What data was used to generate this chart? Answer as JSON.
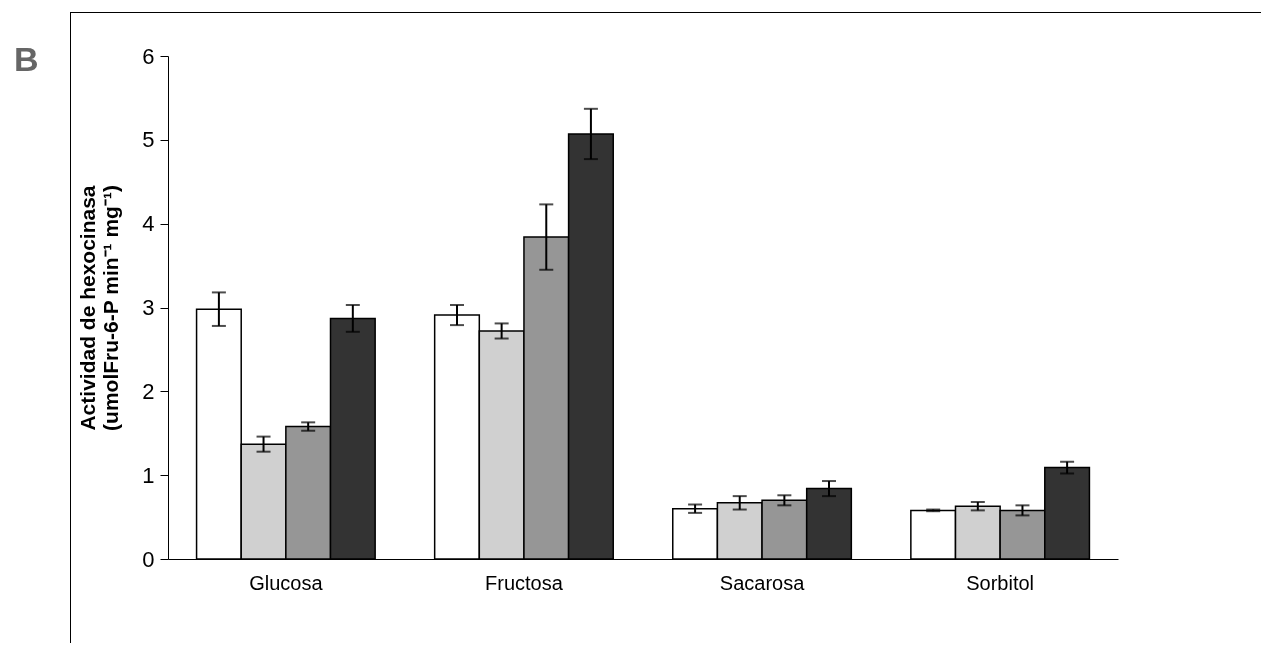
{
  "chart_data": {
    "type": "bar",
    "ylabel": "Actividad de hexocinasa\n(umolFru-6-P min⁻¹ mg⁻¹)",
    "annotations": [
      "B"
    ],
    "categories": [
      "Glucosa",
      "Fructosa",
      "Sacarosa",
      "Sorbitol"
    ],
    "series": [
      {
        "color": "#ffffff",
        "values": [
          2.98,
          2.91,
          0.6,
          0.58
        ],
        "errors": [
          0.2,
          0.12,
          0.05,
          0.01
        ]
      },
      {
        "color": "#d0d0d0",
        "values": [
          1.37,
          2.72,
          0.67,
          0.63
        ],
        "errors": [
          0.09,
          0.09,
          0.08,
          0.05
        ]
      },
      {
        "color": "#969696",
        "values": [
          1.58,
          3.84,
          0.7,
          0.58
        ],
        "errors": [
          0.05,
          0.39,
          0.06,
          0.06
        ]
      },
      {
        "color": "#333333",
        "values": [
          2.87,
          5.07,
          0.84,
          1.09
        ],
        "errors": [
          0.16,
          0.3,
          0.09,
          0.07
        ]
      }
    ],
    "ylim": [
      0,
      6
    ],
    "yticks": [
      0,
      1,
      2,
      3,
      4,
      5,
      6
    ],
    "grid": false,
    "legend": false
  }
}
